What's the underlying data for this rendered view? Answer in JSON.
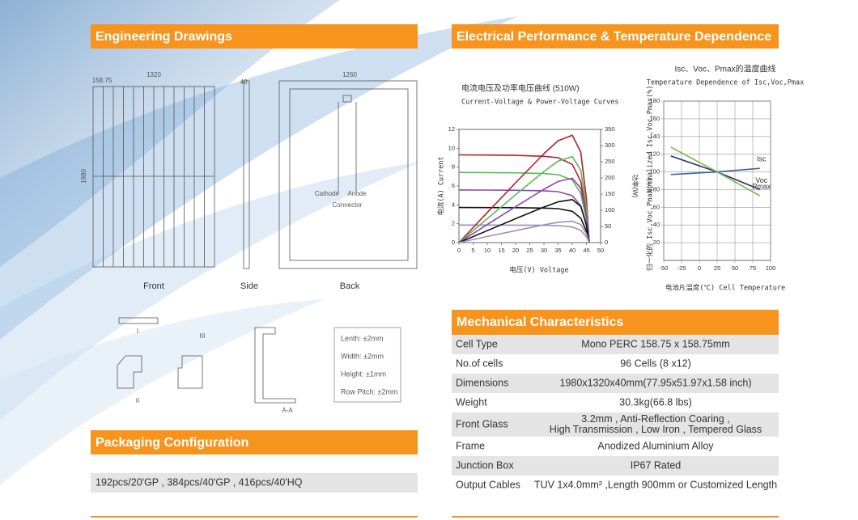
{
  "engineering": {
    "title": "Engineering Drawings",
    "views": [
      "Front",
      "Side",
      "Back"
    ],
    "dimensions": [
      "1320",
      "1260",
      "158.75",
      "1980",
      "40",
      "Cathode",
      "Anode",
      "Connector"
    ],
    "details": [
      "I",
      "II",
      "III",
      "A-A"
    ],
    "tolerances": [
      "Lenth: ±2mm",
      "Width: ±2mm",
      "Height: ±1mm",
      "Row Pitch: ±2mm"
    ]
  },
  "packaging": {
    "title": "Packaging Configuration",
    "text": "192pcs/20'GP , 384pcs/40'GP , 416pcs/40'HQ"
  },
  "electrical": {
    "title": "Electrical Performance & Temperature Dependence",
    "iv_chart": {
      "type": "line",
      "title": "电流电压及功率电压曲线 (510W)",
      "subtitle": "Current-Voltage & Power-Voltage Curves",
      "x_label": "电压(V) Voltage",
      "y_label": "电流(A) Current",
      "y2_label": "功率(W)",
      "x": [
        0,
        10,
        20,
        30,
        35,
        40,
        43,
        45,
        46
      ],
      "xlim": [
        0,
        50
      ],
      "xticks": [
        0,
        5,
        10,
        15,
        20,
        25,
        30,
        35,
        40,
        45,
        50
      ],
      "ylim": [
        0,
        12
      ],
      "yticks": [
        0,
        2,
        4,
        6,
        8,
        10,
        12
      ],
      "y2lim": [
        0,
        350
      ],
      "y2ticks": [
        0,
        50,
        100,
        150,
        200,
        250,
        300,
        350
      ],
      "grid": false,
      "series": [
        {
          "color": "#b3202a",
          "values": [
            9.3,
            9.28,
            9.25,
            9.15,
            9.0,
            8.3,
            6.5,
            3.0,
            0
          ]
        },
        {
          "color": "#5cb85c",
          "values": [
            7.44,
            7.42,
            7.4,
            7.32,
            7.2,
            6.64,
            5.2,
            2.4,
            0
          ]
        },
        {
          "color": "#8e44ad",
          "values": [
            5.58,
            5.57,
            5.55,
            5.49,
            5.4,
            4.98,
            3.9,
            1.8,
            0
          ]
        },
        {
          "color": "#111111",
          "values": [
            3.72,
            3.71,
            3.7,
            3.66,
            3.6,
            3.32,
            2.6,
            1.2,
            0
          ]
        },
        {
          "color": "#9a8fb8",
          "values": [
            1.86,
            1.86,
            1.85,
            1.83,
            1.8,
            1.66,
            1.3,
            0.6,
            0
          ]
        },
        {
          "color": "#b3202a",
          "axis": "y2",
          "values": [
            0,
            93,
            185,
            275,
            315,
            332,
            280,
            135,
            0
          ]
        },
        {
          "color": "#5cb85c",
          "axis": "y2",
          "values": [
            0,
            74,
            148,
            220,
            252,
            266,
            224,
            108,
            0
          ]
        },
        {
          "color": "#8e44ad",
          "axis": "y2",
          "values": [
            0,
            56,
            111,
            165,
            189,
            199,
            168,
            81,
            0
          ]
        },
        {
          "color": "#111111",
          "axis": "y2",
          "values": [
            0,
            37,
            74,
            110,
            126,
            133,
            112,
            54,
            0
          ]
        },
        {
          "color": "#9a8fb8",
          "axis": "y2",
          "values": [
            0,
            19,
            37,
            55,
            63,
            66,
            56,
            27,
            0
          ]
        }
      ]
    },
    "temp_chart": {
      "type": "line",
      "title": "Isc、Voc、Pmax的温度曲线",
      "subtitle": "Temperature Dependence of Isc,Voc,Pmax",
      "x_label": "电池片温度(℃)  Cell Temperature",
      "y_label": [
        "Normalized Isc,Voc,Pmax(%)",
        "归一化的 Isc,Voc,Pmax(%)"
      ],
      "x": [
        -40,
        25,
        85
      ],
      "xlim": [
        -50,
        100
      ],
      "xticks": [
        -50,
        -25,
        0,
        25,
        50,
        75,
        100
      ],
      "ylim": [
        0,
        180
      ],
      "yticks": [
        20,
        40,
        60,
        80,
        100,
        120,
        140,
        160,
        180
      ],
      "grid": true,
      "series": [
        {
          "name": "Isc",
          "color": "#3a5fa8",
          "values": [
            97,
            100,
            104
          ]
        },
        {
          "name": "Voc",
          "color": "#2b2f6b",
          "values": [
            118,
            100,
            80
          ]
        },
        {
          "name": "Pmax",
          "color": "#6cbf3f",
          "values": [
            128,
            100,
            73
          ]
        }
      ]
    }
  },
  "mechanical": {
    "title": "Mechanical Characteristics",
    "rows": [
      [
        "Cell Type",
        "Mono  PERC 158.75 x 158.75mm"
      ],
      [
        "No.of cells",
        "96 Cells (8 x12)"
      ],
      [
        "Dimensions",
        "1980x1320x40mm(77.95x51.97x1.58 inch)"
      ],
      [
        "Weight",
        "30.3kg(66.8 lbs)"
      ],
      [
        "Front Glass",
        "3.2mm ,  Anti-Reflection Coaring ,",
        "High Transmission , Low Iron , Tempered Glass"
      ],
      [
        "Frame",
        "Anodized Aluminium Alloy"
      ],
      [
        "Junction Box",
        "IP67 Rated"
      ],
      [
        "Output Cables",
        "TUV 1x4.0mm² ,Length 900mm or Customized Length"
      ]
    ]
  }
}
